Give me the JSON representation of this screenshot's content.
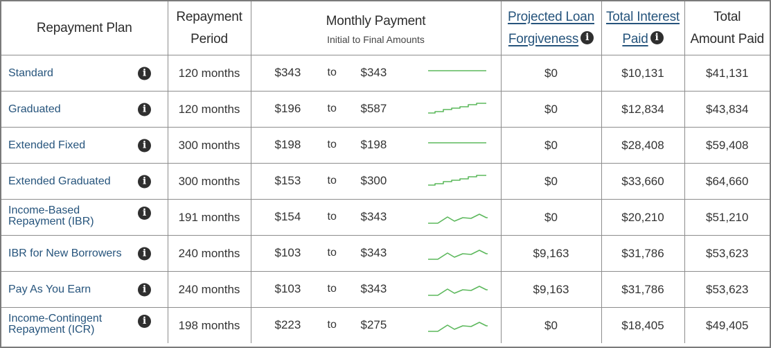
{
  "header": {
    "plan": "Repayment Plan",
    "period_line1": "Repayment",
    "period_line2": "Period",
    "monthly_title": "Monthly Payment",
    "monthly_sub": "Initial to Final Amounts",
    "forgiveness_line1": "Projected Loan",
    "forgiveness_line2": "Forgiveness",
    "interest_line1": "Total Interest",
    "interest_line2": "Paid",
    "total_line1": "Total",
    "total_line2": "Amount Paid"
  },
  "to_label": "to",
  "icons": {
    "info": "info-icon",
    "sparkline": "payment-trend-sparkline"
  },
  "colors": {
    "link": "#26547c",
    "sparkline": "#5cb85c",
    "info": "#2f2f2f"
  },
  "rows": [
    {
      "plan": "Standard",
      "period": "120 months",
      "initial": "$343",
      "final": "$343",
      "trend": "flat",
      "forgiveness": "$0",
      "interest": "$10,131",
      "total": "$41,131"
    },
    {
      "plan": "Graduated",
      "period": "120 months",
      "initial": "$196",
      "final": "$587",
      "trend": "step",
      "forgiveness": "$0",
      "interest": "$12,834",
      "total": "$43,834"
    },
    {
      "plan": "Extended Fixed",
      "period": "300 months",
      "initial": "$198",
      "final": "$198",
      "trend": "flat",
      "forgiveness": "$0",
      "interest": "$28,408",
      "total": "$59,408"
    },
    {
      "plan": "Extended Graduated",
      "period": "300 months",
      "initial": "$153",
      "final": "$300",
      "trend": "step",
      "forgiveness": "$0",
      "interest": "$33,660",
      "total": "$64,660"
    },
    {
      "plan": "Income-Based Repayment (IBR)",
      "period": "191 months",
      "initial": "$154",
      "final": "$343",
      "trend": "wave",
      "forgiveness": "$0",
      "interest": "$20,210",
      "total": "$51,210"
    },
    {
      "plan": "IBR for New Borrowers",
      "period": "240 months",
      "initial": "$103",
      "final": "$343",
      "trend": "wave",
      "forgiveness": "$9,163",
      "interest": "$31,786",
      "total": "$53,623"
    },
    {
      "plan": "Pay As You Earn",
      "period": "240 months",
      "initial": "$103",
      "final": "$343",
      "trend": "wave",
      "forgiveness": "$9,163",
      "interest": "$31,786",
      "total": "$53,623"
    },
    {
      "plan": "Income-Contingent Repayment (ICR)",
      "period": "198 months",
      "initial": "$223",
      "final": "$275",
      "trend": "wave",
      "forgiveness": "$0",
      "interest": "$18,405",
      "total": "$49,405"
    }
  ]
}
